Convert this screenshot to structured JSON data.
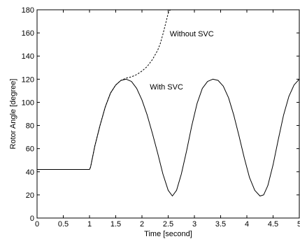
{
  "chart_data": {
    "type": "line",
    "xlabel": "Time [second]",
    "ylabel": "Rotor Angle [degree]",
    "xlim": [
      0,
      5
    ],
    "ylim": [
      0,
      180
    ],
    "xticks": [
      0,
      0.5,
      1,
      1.5,
      2,
      2.5,
      3,
      3.5,
      4,
      4.5,
      5
    ],
    "xtick_labels": [
      "0",
      "0.5",
      "1",
      "1.5",
      "2",
      "2.5",
      "3",
      "3.5",
      "4",
      "4.5",
      "5"
    ],
    "yticks": [
      0,
      20,
      40,
      60,
      80,
      100,
      120,
      140,
      160,
      180
    ],
    "ytick_labels": [
      "0",
      "20",
      "40",
      "60",
      "80",
      "100",
      "120",
      "140",
      "160",
      "180"
    ],
    "grid": false,
    "series": [
      {
        "name": "With SVC",
        "style": "solid",
        "color": "#000000",
        "x": [
          0,
          1.0,
          1.02,
          1.1,
          1.2,
          1.3,
          1.4,
          1.5,
          1.6,
          1.7,
          1.8,
          1.9,
          2.0,
          2.1,
          2.2,
          2.3,
          2.4,
          2.5,
          2.58,
          2.66,
          2.75,
          2.85,
          2.95,
          3.05,
          3.15,
          3.25,
          3.35,
          3.45,
          3.55,
          3.65,
          3.75,
          3.85,
          3.95,
          4.05,
          4.15,
          4.25,
          4.32,
          4.4,
          4.5,
          4.6,
          4.7,
          4.8,
          4.9,
          5.0
        ],
        "y": [
          42,
          42,
          44,
          62,
          80,
          96,
          108,
          115,
          119,
          120,
          118,
          112,
          102,
          89,
          73,
          56,
          38,
          24,
          19,
          24,
          38,
          58,
          80,
          99,
          112,
          118,
          120,
          119,
          114,
          104,
          89,
          71,
          52,
          35,
          24,
          19,
          20,
          28,
          46,
          68,
          89,
          105,
          115,
          120
        ]
      },
      {
        "name": "Without SVC",
        "style": "dashed",
        "color": "#000000",
        "x": [
          0,
          1.0,
          1.02,
          1.1,
          1.2,
          1.3,
          1.4,
          1.5,
          1.6,
          1.7,
          1.8,
          1.9,
          2.0,
          2.1,
          2.2,
          2.3,
          2.35,
          2.4,
          2.45,
          2.5,
          2.54
        ],
        "y": [
          42,
          42,
          44,
          62,
          80,
          96,
          108,
          115,
          119,
          121,
          122,
          124,
          127,
          131,
          137,
          145,
          151,
          159,
          168,
          177,
          180
        ]
      }
    ],
    "annotations": [
      {
        "text": "Without SVC",
        "x": 2.53,
        "y": 157
      },
      {
        "text": "With SVC",
        "x": 2.15,
        "y": 111
      }
    ]
  }
}
